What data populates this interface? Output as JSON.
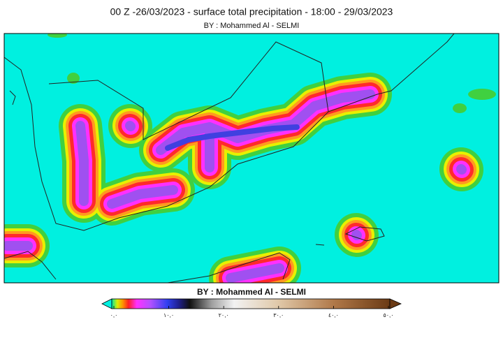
{
  "map": {
    "title": "00 Z -26/03/2023 -  surface total precipitation - 18:00 - 29/03/2023",
    "subtitle": "BY : Mohammed Al - SELMI",
    "colorbar": {
      "label": "BY : Mohammed Al - SELMI",
      "range": [
        0,
        50
      ],
      "ticks": [
        {
          "value": 0,
          "label": "٠,٠"
        },
        {
          "value": 10,
          "label": "١٠,٠"
        },
        {
          "value": 20,
          "label": "٢٠,٠"
        },
        {
          "value": 30,
          "label": "٣٠,٠"
        },
        {
          "value": 40,
          "label": "٤٠,٠"
        },
        {
          "value": 50,
          "label": "٥٠,٠"
        }
      ]
    }
  }
}
